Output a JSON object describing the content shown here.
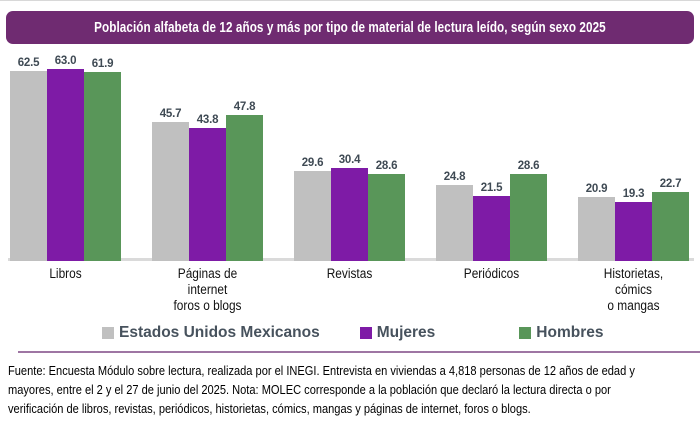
{
  "title": "Población alfabeta de 12 años y más por tipo de material de lectura leído, según sexo 2025",
  "chart_data": {
    "type": "bar",
    "categories": [
      "Libros",
      "Páginas de internet\nforos o blogs",
      "Revistas",
      "Periódicos",
      "Historietas, cómics\no mangas"
    ],
    "series": [
      {
        "name": "Estados Unidos Mexicanos",
        "color": "#c0c0c0",
        "values": [
          62.5,
          45.7,
          29.6,
          24.8,
          20.9
        ]
      },
      {
        "name": "Mujeres",
        "color": "#7e1ba6",
        "values": [
          63.0,
          43.8,
          30.4,
          21.5,
          19.3
        ]
      },
      {
        "name": "Hombres",
        "color": "#599659",
        "values": [
          61.9,
          47.8,
          28.6,
          28.6,
          22.7
        ]
      }
    ],
    "title": "Población alfabeta de 12 años y más por tipo de material de lectura leído, según sexo 2025",
    "xlabel": "",
    "ylabel": "",
    "ylim": [
      0,
      63
    ],
    "grid": false,
    "value_labels": true,
    "legend_position": "bottom",
    "value_format": "one_decimal"
  },
  "footer": {
    "lines": [
      "Fuente: Encuesta Módulo sobre lectura, realizada por el INEGI. Entrevista en viviendas a 4,818 personas de 12 años de edad y",
      "mayores, entre el 2 y el 27 de junio del 2025. Nota: MOLEC corresponde a la población que declaró la lectura directa o por",
      "verificación de libros, revistas, periódicos, historietas, cómics, mangas y páginas de internet, foros o blogs."
    ]
  },
  "colors": {
    "banner_background": "#6f2b71",
    "banner_text": "#ffffff",
    "value_label": "#3f4a54",
    "legend_text": "#47525d",
    "divider": "#9e75a3",
    "axis_line": "#dadada"
  }
}
